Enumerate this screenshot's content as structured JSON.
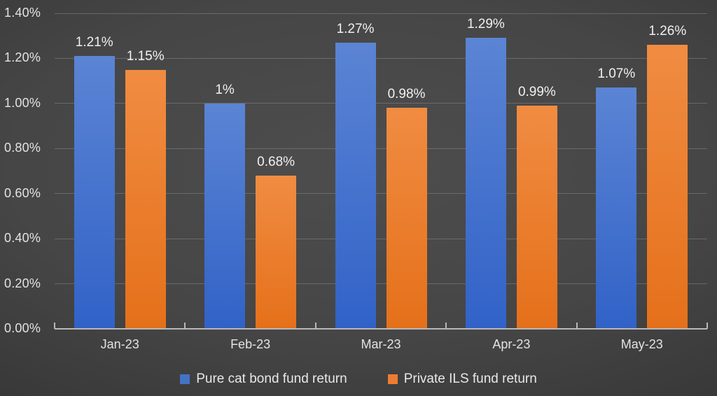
{
  "chart_data": {
    "type": "bar",
    "title": "",
    "categories": [
      "Jan-23",
      "Feb-23",
      "Mar-23",
      "Apr-23",
      "May-23"
    ],
    "series": [
      {
        "name": "Pure cat bond fund return",
        "values": [
          1.21,
          1.0,
          1.27,
          1.29,
          1.07
        ],
        "data_labels": [
          "1.21%",
          "1%",
          "1.27%",
          "1.29%",
          "1.07%"
        ],
        "color_top": "#5b84d4",
        "color_bottom": "#3162c7",
        "legend_swatch": "#4472c4"
      },
      {
        "name": "Private ILS fund return",
        "values": [
          1.15,
          0.68,
          0.98,
          0.99,
          1.26
        ],
        "data_labels": [
          "1.15%",
          "0.68%",
          "0.98%",
          "0.99%",
          "1.26%"
        ],
        "color_top": "#f08c42",
        "color_bottom": "#e5701a",
        "legend_swatch": "#ed7d31"
      }
    ],
    "y_axis": {
      "min": 0,
      "max": 1.4,
      "tick_step": 0.2,
      "tick_labels": [
        "0.00%",
        "0.20%",
        "0.40%",
        "0.60%",
        "0.80%",
        "1.00%",
        "1.20%",
        "1.40%"
      ]
    },
    "x_axis": {
      "tick_labels": [
        "Jan-23",
        "Feb-23",
        "Mar-23",
        "Apr-23",
        "May-23"
      ]
    },
    "legend": {
      "position": "bottom",
      "entries": [
        "Pure cat bond fund return",
        "Private ILS fund return"
      ]
    },
    "grid": true,
    "colors": {
      "background_center": "#4d4d4d",
      "background_edge": "#1d1d1d",
      "gridline": "#8c8c8c",
      "axis_line": "#b8b8b8",
      "axis_text": "#e3e3e3",
      "data_label_text": "#f0f0f0",
      "legend_text": "#e8e8e8"
    }
  }
}
